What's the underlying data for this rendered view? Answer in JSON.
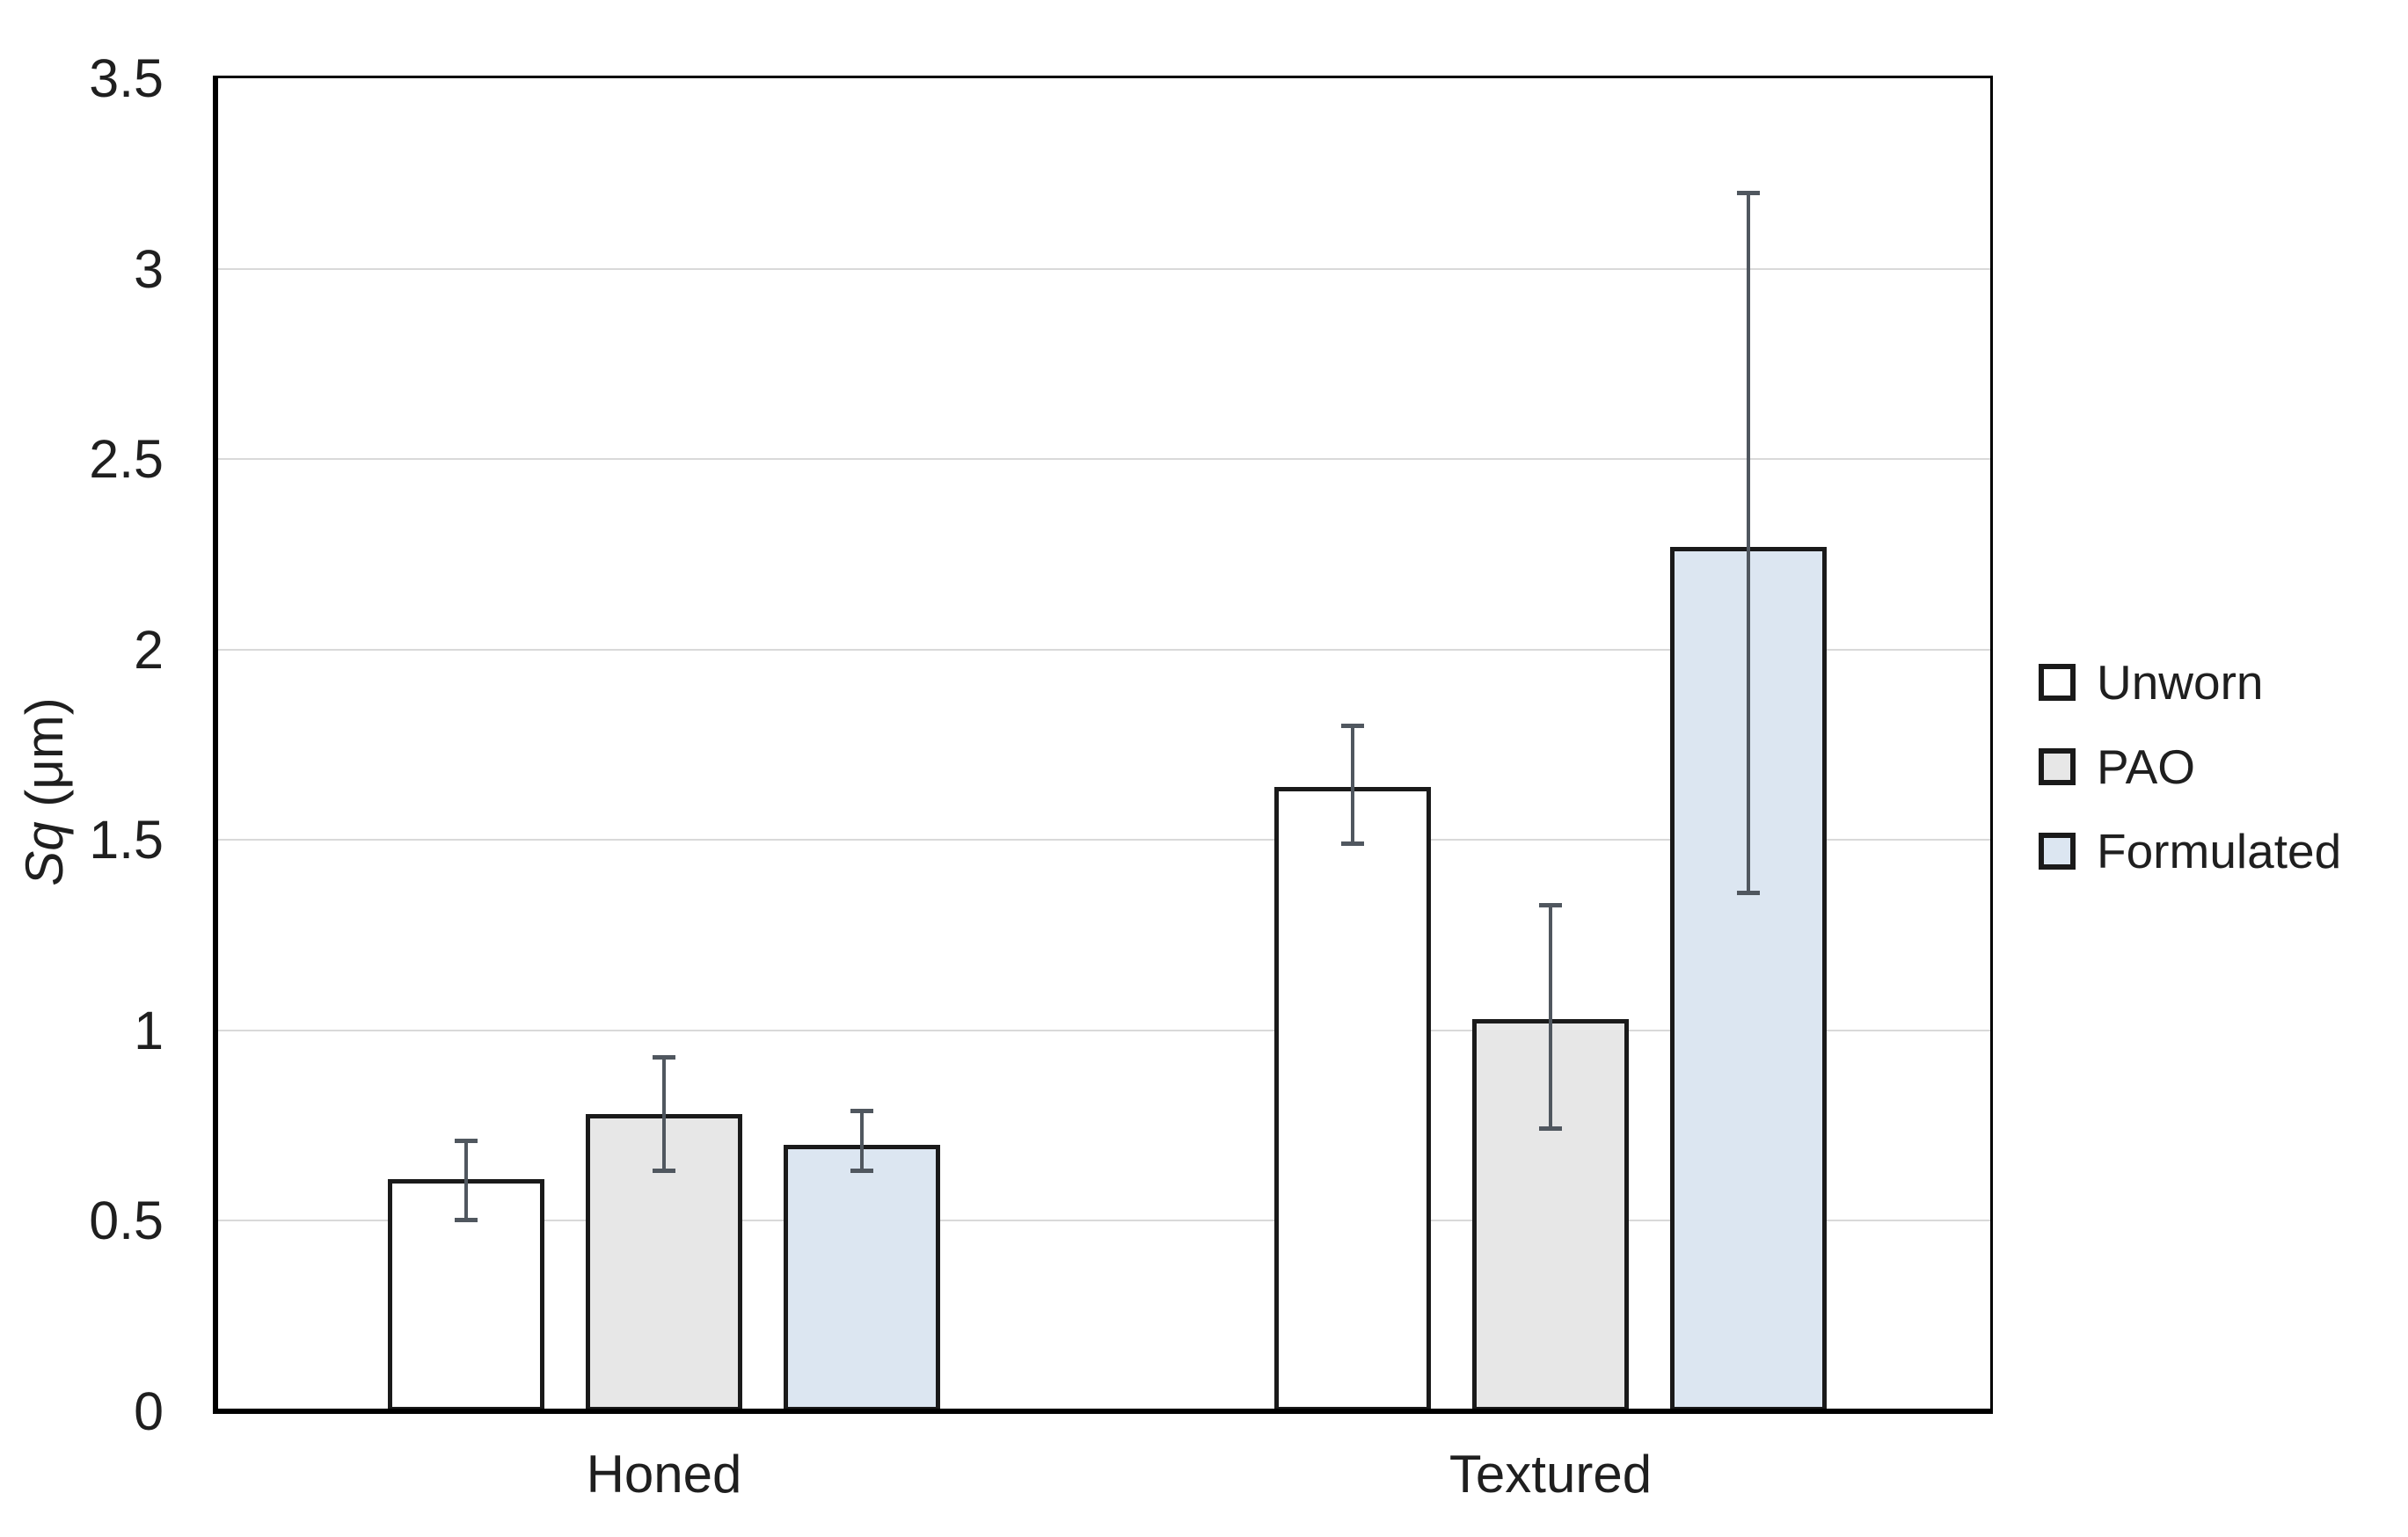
{
  "figure": {
    "background": "#ffffff"
  },
  "chart_data": {
    "type": "bar",
    "title": "",
    "categories": [
      "Honed",
      "Textured"
    ],
    "series": [
      {
        "name": "Unworn",
        "color": "#ffffff",
        "values": [
          0.61,
          1.64
        ],
        "error_low": [
          0.5,
          1.49
        ],
        "error_high": [
          0.71,
          1.8
        ]
      },
      {
        "name": "PAO",
        "color": "#e7e7e7",
        "values": [
          0.78,
          1.03
        ],
        "error_low": [
          0.63,
          0.74
        ],
        "error_high": [
          0.93,
          1.33
        ]
      },
      {
        "name": "Formulated",
        "color": "#dce6f1",
        "values": [
          0.7,
          2.27
        ],
        "error_low": [
          0.63,
          1.36
        ],
        "error_high": [
          0.79,
          3.2
        ]
      }
    ],
    "ylabel_italic": "Sq",
    "ylabel_rest": " (μm)",
    "ylim": [
      0,
      3.5
    ],
    "ytick_step": 0.5,
    "ytick_values": [
      0,
      0.5,
      1,
      1.5,
      2,
      2.5,
      3,
      3.5
    ],
    "ytick_labels": [
      "0",
      "0.5",
      "1",
      "1.5",
      "2",
      "2.5",
      "3",
      "3.5"
    ],
    "grid": true,
    "legend_position": "right",
    "colors": {
      "bar_border": "#1a1a1a",
      "gridline": "#d9d9d9",
      "error_bar": "#50575f",
      "axis": "#000000",
      "text": "#1f1f1f"
    }
  }
}
